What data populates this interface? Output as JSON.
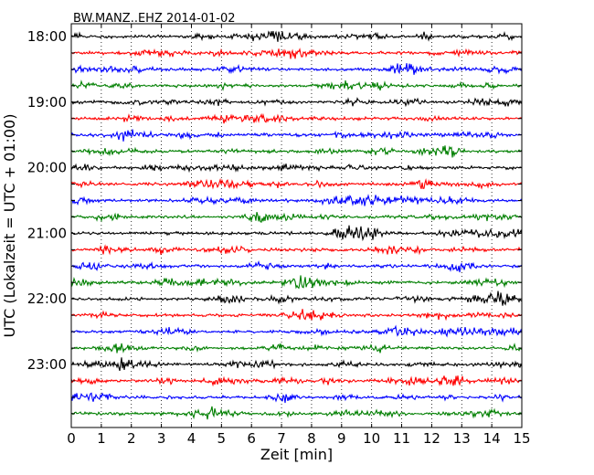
{
  "chart_data": {
    "type": "line",
    "title": "BW.MANZ..EHZ 2014-01-02",
    "xlabel": "Zeit  [min]",
    "ylabel": "UTC (Lokalzeit = UTC + 01:00)",
    "xlim": [
      0,
      15
    ],
    "xticks": [
      0,
      1,
      2,
      3,
      4,
      5,
      6,
      7,
      8,
      9,
      10,
      11,
      12,
      13,
      14,
      15
    ],
    "xtick_labels": [
      "0",
      "1",
      "2",
      "3",
      "4",
      "5",
      "6",
      "7",
      "8",
      "9",
      "10",
      "11",
      "12",
      "13",
      "14",
      "15"
    ],
    "ytick_labels": [
      "18:00",
      "19:00",
      "20:00",
      "21:00",
      "22:00",
      "23:00"
    ],
    "trace_start_times": [
      "18:00",
      "18:15",
      "18:30",
      "18:45",
      "19:00",
      "19:15",
      "19:30",
      "19:45",
      "20:00",
      "20:15",
      "20:30",
      "20:45",
      "21:00",
      "21:15",
      "21:30",
      "21:45",
      "22:00",
      "22:15",
      "22:30",
      "22:45",
      "23:00",
      "23:15",
      "23:30",
      "23:45"
    ],
    "trace_colors": [
      "#000000",
      "#ff0000",
      "#0000ff",
      "#007f00"
    ],
    "grid": "vertical dotted lines at each minute",
    "trace_duration_min": 15
  }
}
